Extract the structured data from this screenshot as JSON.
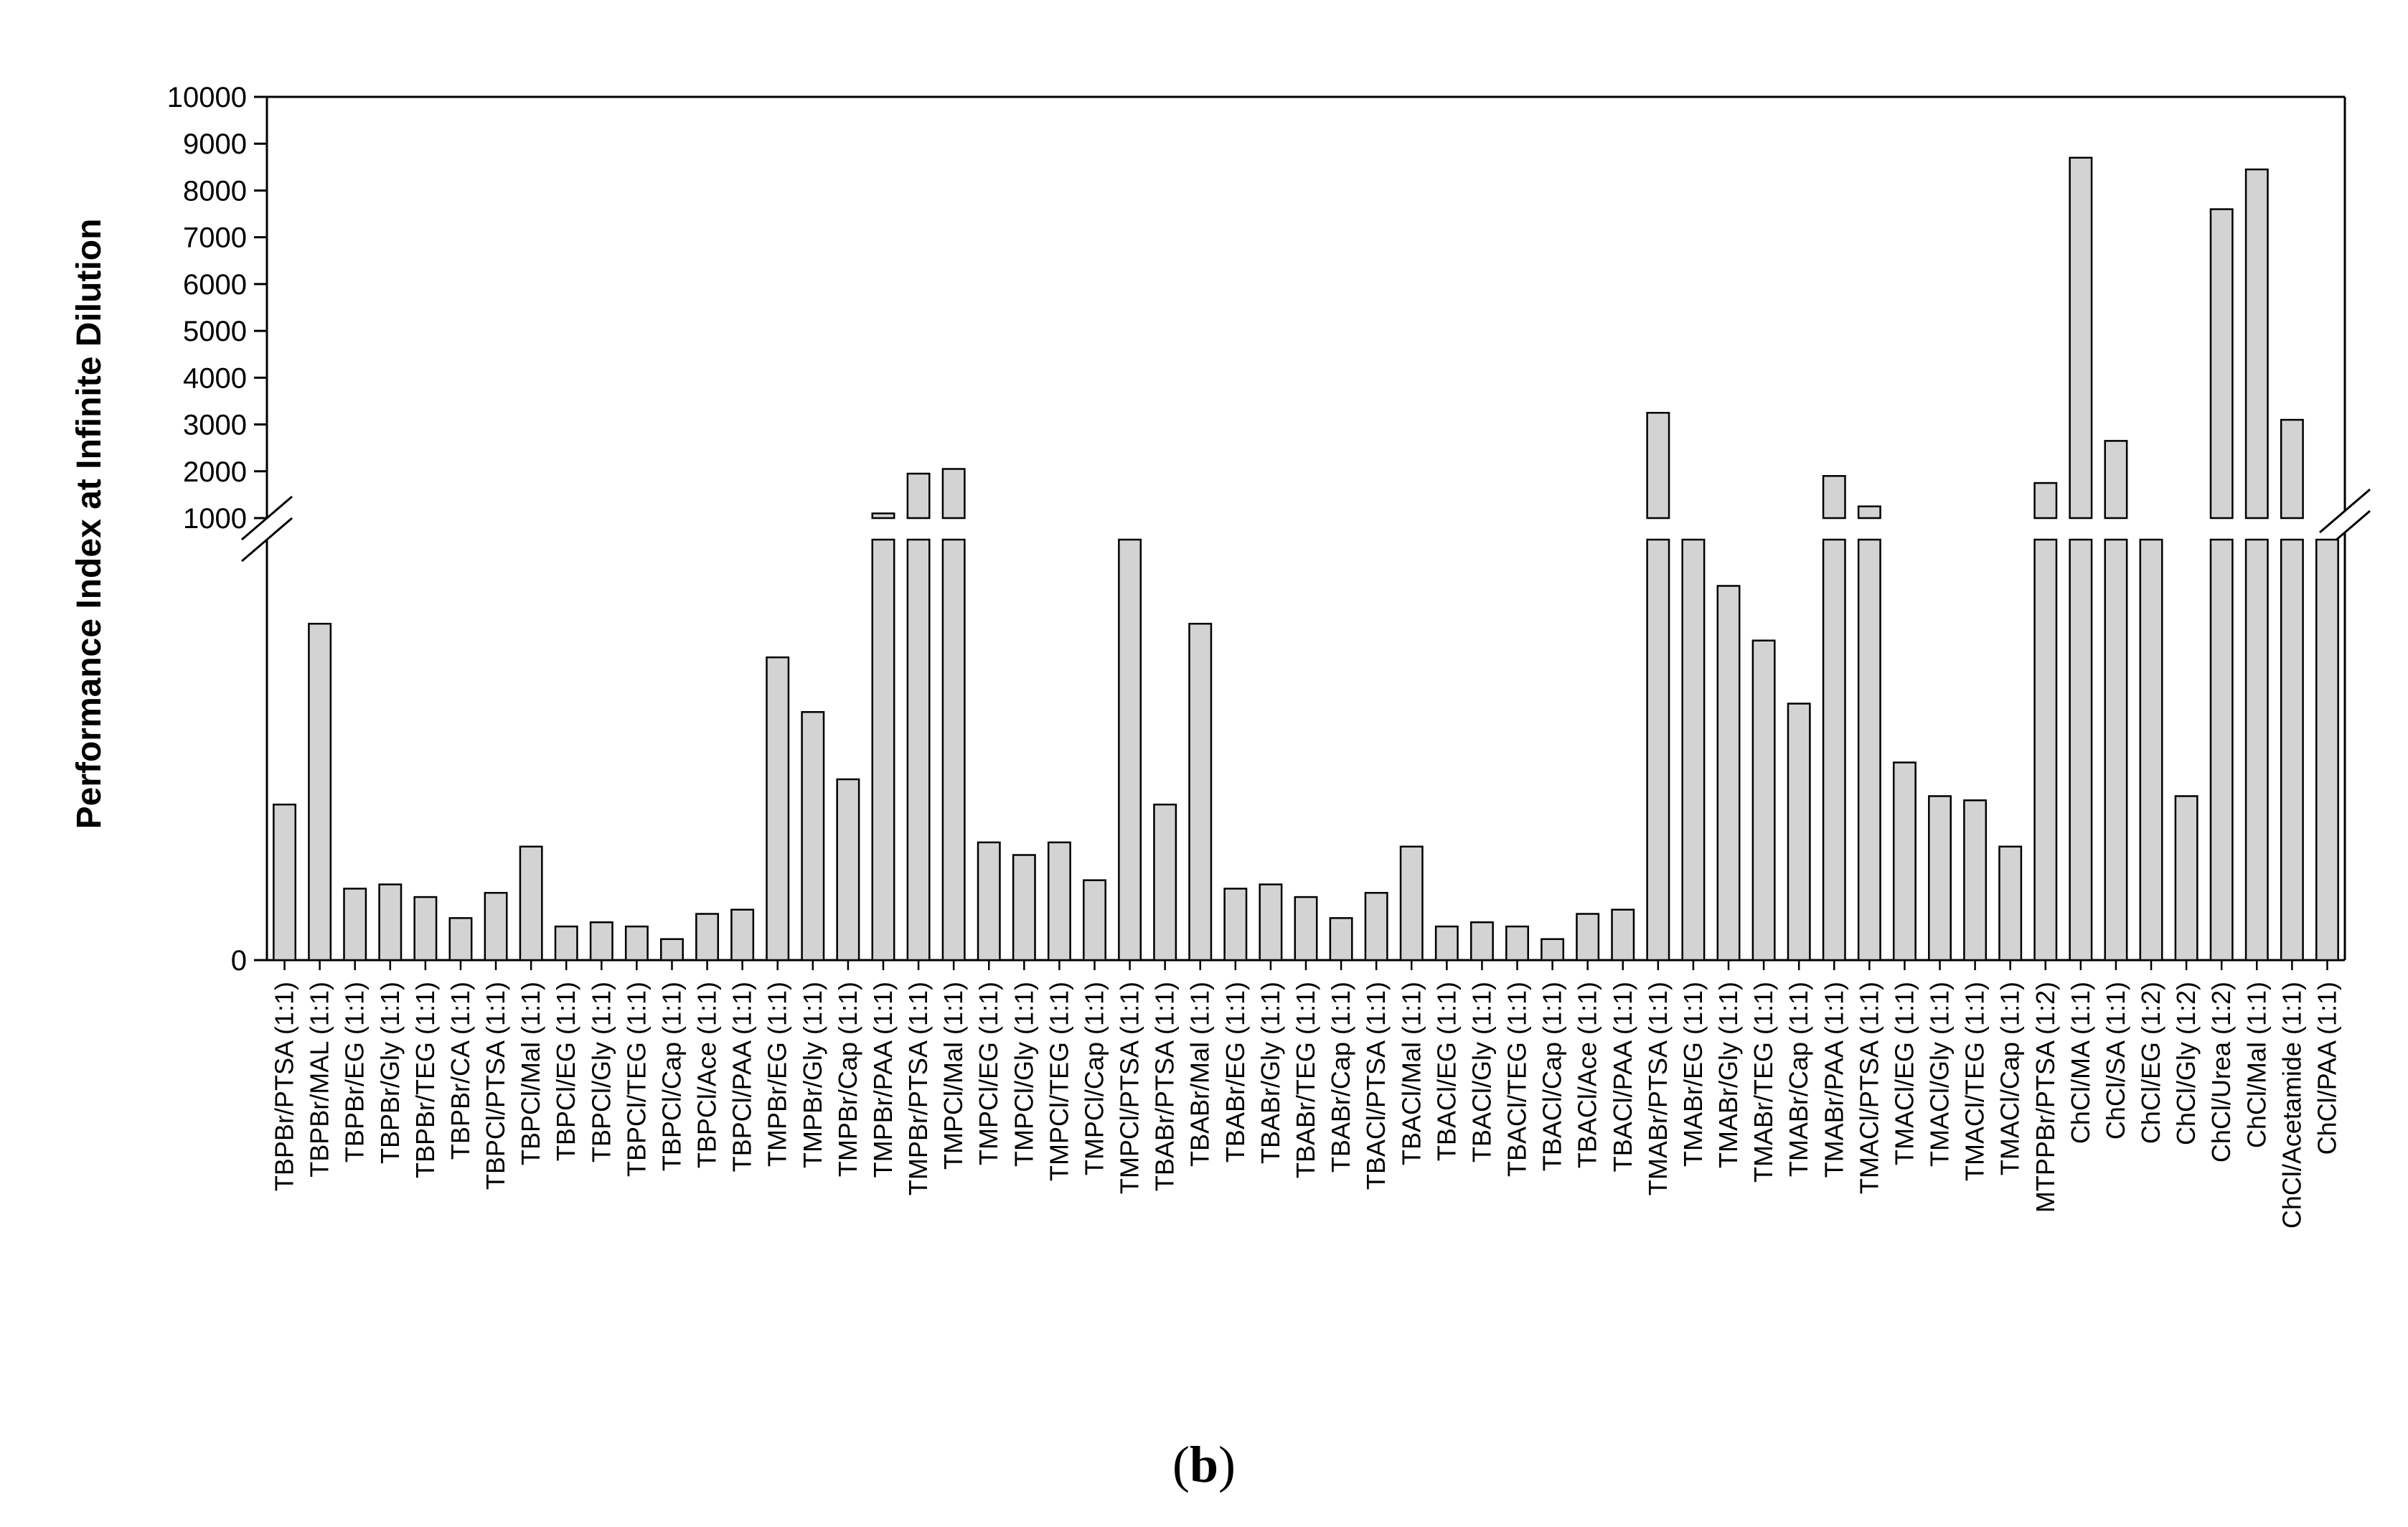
{
  "panel_label_open": "(",
  "panel_label_letter": "b",
  "panel_label_close": ")",
  "chart_data": {
    "type": "bar",
    "ylabel": "Performance Index at Infinite Dilution",
    "xlabel": "",
    "title": "",
    "y_axis_broken": true,
    "y_break_between": [
      1000,
      "upper segment"
    ],
    "upper_ylim": [
      1000,
      10000
    ],
    "upper_ticks": [
      "1000",
      "2000",
      "3000",
      "4000",
      "5000",
      "6000",
      "7000",
      "8000",
      "9000",
      "10000"
    ],
    "lower_ticks": [
      "0"
    ],
    "lower_segment_unlabeled_max_relative": "bars below the break shown as relative heights, no tick labels except 0",
    "bar_color": "#d3d3d3",
    "categories": [
      "TBPBr/PTSA (1:1)",
      "TBPBr/MAL (1:1)",
      "TBPBr/EG (1:1)",
      "TBPBr/Gly (1:1)",
      "TBPBr/TEG (1:1)",
      "TBPBr/CA (1:1)",
      "TBPCl/PTSA (1:1)",
      "TBPCl/Mal (1:1)",
      "TBPCl/EG (1:1)",
      "TBPCl/Gly (1:1)",
      "TBPCl/TEG (1:1)",
      "TBPCl/Cap (1:1)",
      "TBPCl/Ace (1:1)",
      "TBPCl/PAA (1:1)",
      "TMPBr/EG (1:1)",
      "TMPBr/Gly (1:1)",
      "TMPBr/Cap (1:1)",
      "TMPBr/PAA (1:1)",
      "TMPBr/PTSA (1:1)",
      "TMPCl/Mal (1:1)",
      "TMPCl/EG (1:1)",
      "TMPCl/Gly (1:1)",
      "TMPCl/TEG (1:1)",
      "TMPCl/Cap (1:1)",
      "TMPCl/PTSA (1:1)",
      "TBABr/PTSA (1:1)",
      "TBABr/Mal (1:1)",
      "TBABr/EG (1:1)",
      "TBABr/Gly (1:1)",
      "TBABr/TEG (1:1)",
      "TBABr/Cap (1:1)",
      "TBACl/PTSA (1:1)",
      "TBACl/Mal (1:1)",
      "TBACl/EG (1:1)",
      "TBACl/Gly (1:1)",
      "TBACl/TEG (1:1)",
      "TBACl/Cap (1:1)",
      "TBACl/Ace (1:1)",
      "TBACl/PAA (1:1)",
      "TMABr/PTSA (1:1)",
      "TMABr/EG (1:1)",
      "TMABr/Gly (1:1)",
      "TMABr/TEG (1:1)",
      "TMABr/Cap (1:1)",
      "TMABr/PAA (1:1)",
      "TMACl/PTSA (1:1)",
      "TMACl/EG (1:1)",
      "TMACl/Gly (1:1)",
      "TMACl/TEG (1:1)",
      "TMACl/Cap (1:1)",
      "MTPPBr/PTSA (1:2)",
      "ChCl/MA (1:1)",
      "ChCl/SA (1:1)",
      "ChCl/EG (1:2)",
      "ChCl/Gly (1:2)",
      "ChCl/Urea (1:2)",
      "ChCl/Mal (1:1)",
      "ChCl/Acetamide (1:1)",
      "ChCl/PAA (1:1)"
    ],
    "values_note": "Values for bars below the axis break are read as fraction of the lower segment height (0 to break); values above the break are in axis units.",
    "lower_fraction": [
      0.37,
      0.8,
      0.17,
      0.18,
      0.15,
      0.1,
      0.16,
      0.27,
      0.08,
      0.09,
      0.08,
      0.05,
      0.11,
      0.12,
      0.72,
      0.59,
      0.43,
      1.0,
      1.0,
      1.0,
      0.28,
      0.25,
      0.28,
      0.19,
      1.0,
      0.37,
      0.8,
      0.17,
      0.18,
      0.15,
      0.1,
      0.16,
      0.27,
      0.08,
      0.09,
      0.08,
      0.05,
      0.11,
      0.12,
      1.0,
      1.0,
      0.89,
      0.76,
      0.61,
      1.0,
      1.0,
      0.47,
      0.39,
      0.38,
      0.27,
      1.0,
      1.0,
      1.0,
      1.0,
      0.39,
      1.0,
      1.0,
      1.0,
      1.0
    ],
    "upper_values": [
      null,
      null,
      null,
      null,
      null,
      null,
      null,
      null,
      null,
      null,
      null,
      null,
      null,
      null,
      null,
      null,
      null,
      1100,
      1950,
      2050,
      null,
      null,
      null,
      null,
      950,
      null,
      null,
      null,
      null,
      null,
      null,
      null,
      null,
      null,
      null,
      null,
      null,
      null,
      null,
      3250,
      950,
      null,
      null,
      null,
      1900,
      1250,
      null,
      null,
      null,
      null,
      1750,
      8700,
      2650,
      950,
      null,
      7600,
      8450,
      3100,
      950
    ]
  }
}
